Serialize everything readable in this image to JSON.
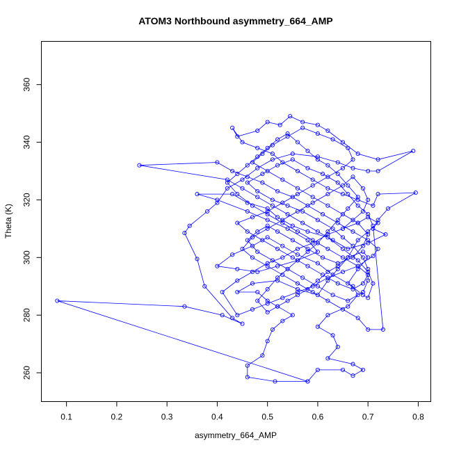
{
  "chart_data": {
    "type": "line",
    "title": "ATOM3 Northbound asymmetry_664_AMP",
    "xlabel": "asymmetry_664_AMP",
    "ylabel": "Theta (K)",
    "xlim": [
      0.05,
      0.825
    ],
    "ylim": [
      250,
      375
    ],
    "xticks": [
      0.1,
      0.2,
      0.3,
      0.4,
      0.5,
      0.6,
      0.7,
      0.8
    ],
    "xtick_labels": [
      "0.1",
      "0.2",
      "0.3",
      "0.4",
      "0.5",
      "0.6",
      "0.7",
      "0.8"
    ],
    "yticks": [
      260,
      280,
      300,
      320,
      340,
      360
    ],
    "ytick_labels": [
      "260",
      "280",
      "300",
      "320",
      "340",
      "360"
    ],
    "grid": false,
    "series": [
      {
        "color": "#0000ff",
        "marker": "open-circle",
        "points": [
          [
            0.58,
            257
          ],
          [
            0.515,
            257
          ],
          [
            0.46,
            258.5
          ],
          [
            0.46,
            262.5
          ],
          [
            0.49,
            266
          ],
          [
            0.5,
            271
          ],
          [
            0.51,
            275
          ],
          [
            0.53,
            278
          ],
          [
            0.55,
            280
          ],
          [
            0.52,
            283
          ],
          [
            0.5,
            285
          ],
          [
            0.48,
            288
          ],
          [
            0.44,
            288
          ],
          [
            0.47,
            291
          ],
          [
            0.52,
            292
          ],
          [
            0.56,
            289
          ],
          [
            0.6,
            287
          ],
          [
            0.62,
            292
          ],
          [
            0.64,
            296
          ],
          [
            0.66,
            300
          ],
          [
            0.69,
            302
          ],
          [
            0.7,
            300
          ],
          [
            0.68,
            296
          ],
          [
            0.66,
            291
          ],
          [
            0.69,
            287
          ],
          [
            0.7,
            286
          ],
          [
            0.71,
            291
          ],
          [
            0.7,
            295
          ],
          [
            0.68,
            299
          ],
          [
            0.65,
            303
          ],
          [
            0.62,
            307
          ],
          [
            0.58,
            309
          ],
          [
            0.55,
            311
          ],
          [
            0.52,
            314
          ],
          [
            0.5,
            317
          ],
          [
            0.46,
            319
          ],
          [
            0.43,
            322
          ],
          [
            0.36,
            322
          ],
          [
            0.4,
            320
          ],
          [
            0.46,
            316
          ],
          [
            0.5,
            313
          ],
          [
            0.54,
            310
          ],
          [
            0.58,
            306
          ],
          [
            0.6,
            302
          ],
          [
            0.56,
            299
          ],
          [
            0.52,
            297
          ],
          [
            0.48,
            295
          ],
          [
            0.44,
            296
          ],
          [
            0.4,
            297
          ],
          [
            0.43,
            301
          ],
          [
            0.47,
            304
          ],
          [
            0.5,
            307
          ],
          [
            0.53,
            304
          ],
          [
            0.56,
            301
          ],
          [
            0.6,
            298
          ],
          [
            0.63,
            294
          ],
          [
            0.67,
            290
          ],
          [
            0.68,
            287
          ],
          [
            0.66,
            283
          ],
          [
            0.62,
            280
          ],
          [
            0.6,
            276
          ],
          [
            0.63,
            273
          ],
          [
            0.64,
            269
          ],
          [
            0.62,
            265
          ],
          [
            0.67,
            263
          ],
          [
            0.69,
            261
          ],
          [
            0.67,
            259
          ],
          [
            0.65,
            261
          ],
          [
            0.6,
            261
          ],
          [
            0.58,
            257
          ],
          [
            0.0815,
            285
          ],
          [
            0.335,
            283
          ],
          [
            0.41,
            280
          ],
          [
            0.45,
            277
          ],
          [
            0.43,
            279
          ],
          [
            0.375,
            290
          ],
          [
            0.36,
            299.5
          ],
          [
            0.335,
            308.5
          ],
          [
            0.345,
            311
          ],
          [
            0.38,
            316
          ],
          [
            0.4,
            319
          ],
          [
            0.42,
            324
          ],
          [
            0.45,
            327
          ],
          [
            0.48,
            331
          ],
          [
            0.51,
            334
          ],
          [
            0.55,
            336
          ],
          [
            0.6,
            335
          ],
          [
            0.64,
            333
          ],
          [
            0.67,
            331
          ],
          [
            0.7,
            330
          ],
          [
            0.72,
            330
          ],
          [
            0.79,
            337
          ],
          [
            0.72,
            334
          ],
          [
            0.68,
            336
          ],
          [
            0.65,
            340
          ],
          [
            0.62,
            344
          ],
          [
            0.6,
            346
          ],
          [
            0.57,
            347
          ],
          [
            0.545,
            349
          ],
          [
            0.525,
            346
          ],
          [
            0.5,
            347
          ],
          [
            0.48,
            344
          ],
          [
            0.44,
            342
          ],
          [
            0.43,
            345
          ],
          [
            0.45,
            340
          ],
          [
            0.48,
            338
          ],
          [
            0.51,
            336
          ],
          [
            0.53,
            333
          ],
          [
            0.56,
            330
          ],
          [
            0.59,
            327
          ],
          [
            0.62,
            324
          ],
          [
            0.65,
            322
          ],
          [
            0.68,
            320
          ],
          [
            0.71,
            318
          ],
          [
            0.72,
            322
          ],
          [
            0.795,
            322.5
          ],
          [
            0.74,
            317
          ],
          [
            0.72,
            313
          ],
          [
            0.71,
            310
          ],
          [
            0.735,
            308
          ],
          [
            0.7,
            305
          ],
          [
            0.66,
            303
          ],
          [
            0.63,
            306
          ],
          [
            0.6,
            309
          ],
          [
            0.57,
            312
          ],
          [
            0.54,
            315
          ],
          [
            0.51,
            318
          ],
          [
            0.48,
            321
          ],
          [
            0.45,
            324
          ],
          [
            0.42,
            327
          ],
          [
            0.245,
            332
          ],
          [
            0.4,
            333
          ],
          [
            0.43,
            330
          ],
          [
            0.46,
            328
          ],
          [
            0.49,
            326
          ],
          [
            0.52,
            323
          ],
          [
            0.55,
            321
          ],
          [
            0.58,
            318
          ],
          [
            0.61,
            315
          ],
          [
            0.64,
            312
          ],
          [
            0.67,
            309
          ],
          [
            0.7,
            306
          ],
          [
            0.72,
            303
          ],
          [
            0.71,
            300.5
          ],
          [
            0.68,
            297
          ],
          [
            0.65,
            295
          ],
          [
            0.62,
            293
          ],
          [
            0.59,
            290
          ],
          [
            0.56,
            288
          ],
          [
            0.53,
            286
          ],
          [
            0.5,
            284
          ],
          [
            0.47,
            282
          ],
          [
            0.44,
            280
          ],
          [
            0.41,
            288
          ],
          [
            0.44,
            292
          ],
          [
            0.47,
            295
          ],
          [
            0.5,
            298
          ],
          [
            0.53,
            300
          ],
          [
            0.56,
            303
          ],
          [
            0.59,
            305
          ],
          [
            0.62,
            308
          ],
          [
            0.65,
            310
          ],
          [
            0.68,
            312
          ],
          [
            0.7,
            314
          ],
          [
            0.72,
            312
          ],
          [
            0.7,
            309
          ],
          [
            0.68,
            306
          ],
          [
            0.66,
            300
          ],
          [
            0.64,
            297
          ],
          [
            0.62,
            295
          ],
          [
            0.6,
            292
          ],
          [
            0.58,
            289
          ],
          [
            0.56,
            287
          ],
          [
            0.54,
            285
          ],
          [
            0.52,
            283
          ],
          [
            0.5,
            281
          ],
          [
            0.48,
            285
          ],
          [
            0.5,
            289
          ],
          [
            0.52,
            293
          ],
          [
            0.54,
            296
          ],
          [
            0.56,
            299
          ],
          [
            0.58,
            302
          ],
          [
            0.6,
            305
          ],
          [
            0.62,
            309
          ],
          [
            0.64,
            313
          ],
          [
            0.66,
            317
          ],
          [
            0.68,
            321
          ],
          [
            0.66,
            325
          ],
          [
            0.64,
            329
          ],
          [
            0.62,
            332
          ],
          [
            0.6,
            334
          ],
          [
            0.58,
            337
          ],
          [
            0.56,
            340
          ],
          [
            0.54,
            343
          ],
          [
            0.52,
            341
          ],
          [
            0.5,
            338
          ],
          [
            0.48,
            335
          ],
          [
            0.46,
            332
          ],
          [
            0.44,
            329
          ],
          [
            0.42,
            326
          ],
          [
            0.44,
            322
          ],
          [
            0.47,
            318
          ],
          [
            0.5,
            315
          ],
          [
            0.53,
            312
          ],
          [
            0.56,
            309
          ],
          [
            0.59,
            306
          ],
          [
            0.62,
            303
          ],
          [
            0.65,
            300
          ],
          [
            0.68,
            297
          ],
          [
            0.7,
            294
          ],
          [
            0.69,
            291
          ],
          [
            0.67,
            289
          ],
          [
            0.64,
            291
          ],
          [
            0.61,
            294
          ],
          [
            0.58,
            297
          ],
          [
            0.55,
            300
          ],
          [
            0.52,
            303
          ],
          [
            0.49,
            306
          ],
          [
            0.46,
            309
          ],
          [
            0.44,
            312
          ],
          [
            0.47,
            314
          ],
          [
            0.5,
            316
          ],
          [
            0.53,
            319
          ],
          [
            0.56,
            322
          ],
          [
            0.59,
            325
          ],
          [
            0.62,
            328
          ],
          [
            0.65,
            331
          ],
          [
            0.67,
            334
          ],
          [
            0.66,
            338
          ],
          [
            0.63,
            341
          ],
          [
            0.6,
            343
          ],
          [
            0.57,
            345
          ],
          [
            0.54,
            342
          ],
          [
            0.51,
            339
          ],
          [
            0.49,
            336
          ],
          [
            0.47,
            333
          ],
          [
            0.5,
            330
          ],
          [
            0.53,
            327
          ],
          [
            0.56,
            324
          ],
          [
            0.59,
            321
          ],
          [
            0.62,
            318
          ],
          [
            0.65,
            315
          ],
          [
            0.68,
            312
          ],
          [
            0.7,
            308
          ],
          [
            0.69,
            304
          ],
          [
            0.67,
            300
          ],
          [
            0.64,
            298
          ],
          [
            0.61,
            300
          ],
          [
            0.58,
            303
          ],
          [
            0.55,
            306
          ],
          [
            0.52,
            309
          ],
          [
            0.5,
            311
          ],
          [
            0.48,
            309
          ],
          [
            0.46,
            306
          ],
          [
            0.48,
            302
          ],
          [
            0.51,
            299
          ],
          [
            0.54,
            296
          ],
          [
            0.57,
            293
          ],
          [
            0.6,
            290
          ],
          [
            0.63,
            287
          ],
          [
            0.66,
            285
          ],
          [
            0.69,
            288
          ],
          [
            0.7,
            292
          ],
          [
            0.7,
            296
          ],
          [
            0.69,
            300
          ],
          [
            0.67,
            304
          ],
          [
            0.65,
            307
          ],
          [
            0.63,
            310
          ],
          [
            0.6,
            313
          ],
          [
            0.57,
            316
          ],
          [
            0.54,
            318
          ],
          [
            0.51,
            320
          ],
          [
            0.48,
            323
          ],
          [
            0.46,
            326
          ],
          [
            0.49,
            329
          ],
          [
            0.52,
            332
          ],
          [
            0.55,
            334
          ],
          [
            0.58,
            331
          ],
          [
            0.61,
            329
          ],
          [
            0.64,
            326
          ],
          [
            0.66,
            322
          ],
          [
            0.68,
            318
          ],
          [
            0.7,
            315
          ],
          [
            0.71,
            311
          ],
          [
            0.73,
            275
          ],
          [
            0.7,
            275
          ],
          [
            0.68,
            279
          ],
          [
            0.65,
            282
          ],
          [
            0.62,
            285
          ],
          [
            0.59,
            288
          ],
          [
            0.56,
            291
          ],
          [
            0.53,
            294
          ],
          [
            0.5,
            297
          ],
          [
            0.47,
            300
          ],
          [
            0.45,
            303
          ],
          [
            0.47,
            307
          ],
          [
            0.5,
            310
          ],
          [
            0.53,
            313
          ],
          [
            0.56,
            316
          ],
          [
            0.59,
            319
          ],
          [
            0.62,
            322
          ],
          [
            0.65,
            325
          ],
          [
            0.67,
            328
          ],
          [
            0.69,
            324
          ],
          [
            0.7,
            320
          ],
          [
            0.69,
            316
          ],
          [
            0.67,
            313
          ],
          [
            0.65,
            310
          ]
        ]
      }
    ]
  }
}
